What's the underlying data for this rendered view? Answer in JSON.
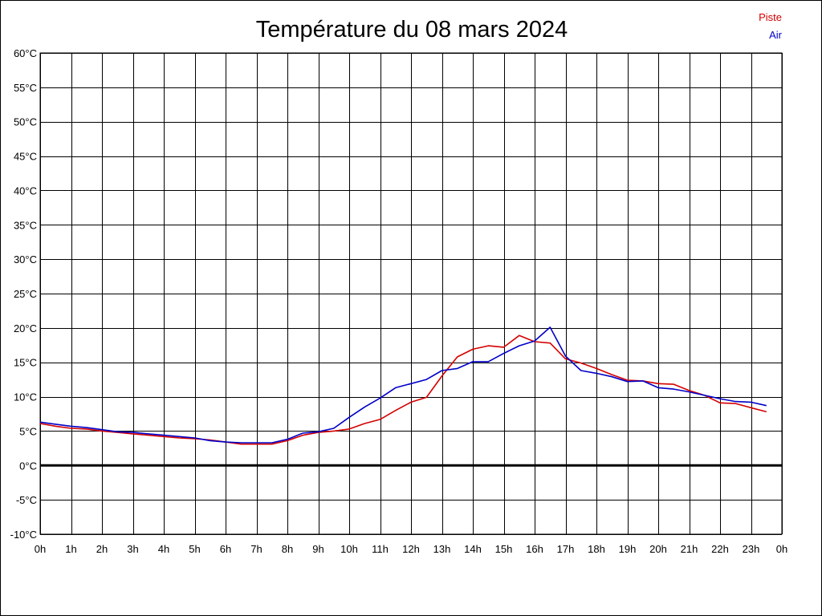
{
  "chart_data": {
    "type": "line",
    "title": "Température du 08 mars 2024",
    "x_tick_labels": [
      "0h",
      "1h",
      "2h",
      "3h",
      "4h",
      "5h",
      "6h",
      "7h",
      "8h",
      "9h",
      "10h",
      "11h",
      "12h",
      "13h",
      "14h",
      "15h",
      "16h",
      "17h",
      "18h",
      "19h",
      "20h",
      "21h",
      "22h",
      "23h",
      "0h"
    ],
    "y_tick_labels": [
      "60°C",
      "55°C",
      "50°C",
      "45°C",
      "40°C",
      "35°C",
      "30°C",
      "25°C",
      "20°C",
      "15°C",
      "10°C",
      "5°C",
      "0°C",
      "-5°C",
      "-10°C"
    ],
    "xlim": [
      0,
      24
    ],
    "ylim": [
      -10,
      60
    ],
    "grid": true,
    "legend_position": "top-right",
    "series": [
      {
        "name": "Piste",
        "color": "#d40000",
        "x": [
          0,
          0.5,
          1,
          1.5,
          2,
          2.5,
          3,
          3.5,
          4,
          4.5,
          5,
          5.5,
          6,
          6.5,
          7,
          7.5,
          8,
          8.5,
          9,
          9.5,
          10,
          10.5,
          11,
          11.5,
          12,
          12.5,
          13,
          13.5,
          14,
          14.5,
          15,
          15.5,
          16,
          16.5,
          17,
          17.5,
          18,
          18.5,
          19,
          19.5,
          20,
          20.5,
          21,
          21.5,
          22,
          22.5,
          23,
          23.5
        ],
        "y": [
          6.1,
          5.7,
          5.4,
          5.3,
          5.0,
          4.8,
          4.6,
          4.4,
          4.2,
          4.0,
          3.9,
          3.7,
          3.4,
          3.1,
          3.1,
          3.1,
          3.6,
          4.4,
          4.8,
          5.0,
          5.3,
          6.1,
          6.7,
          8.0,
          9.2,
          9.9,
          13.0,
          15.8,
          16.9,
          17.4,
          17.2,
          18.9,
          18.0,
          17.8,
          15.5,
          14.9,
          14.1,
          13.2,
          12.4,
          12.3,
          11.9,
          11.8,
          10.9,
          10.2,
          9.1,
          9.0,
          8.4,
          7.8
        ]
      },
      {
        "name": "Air",
        "color": "#0000c8",
        "x": [
          0,
          0.5,
          1,
          1.5,
          2,
          2.5,
          3,
          3.5,
          4,
          4.5,
          5,
          5.5,
          6,
          6.5,
          7,
          7.5,
          8,
          8.5,
          9,
          9.5,
          10,
          10.5,
          11,
          11.5,
          12,
          12.5,
          13,
          13.5,
          14,
          14.5,
          15,
          15.5,
          16,
          16.5,
          17,
          17.5,
          18,
          18.5,
          19,
          19.5,
          20,
          20.5,
          21,
          21.5,
          22,
          22.5,
          23,
          23.5
        ],
        "y": [
          6.3,
          6.0,
          5.7,
          5.5,
          5.2,
          4.9,
          4.8,
          4.6,
          4.4,
          4.2,
          4.0,
          3.6,
          3.4,
          3.3,
          3.3,
          3.3,
          3.8,
          4.7,
          4.9,
          5.4,
          7.0,
          8.5,
          9.8,
          11.3,
          11.9,
          12.5,
          13.8,
          14.1,
          15.1,
          15.1,
          16.3,
          17.4,
          18.1,
          20.1,
          15.9,
          13.8,
          13.4,
          12.9,
          12.2,
          12.3,
          11.3,
          11.1,
          10.7,
          10.2,
          9.7,
          9.3,
          9.2,
          8.7
        ]
      }
    ]
  }
}
